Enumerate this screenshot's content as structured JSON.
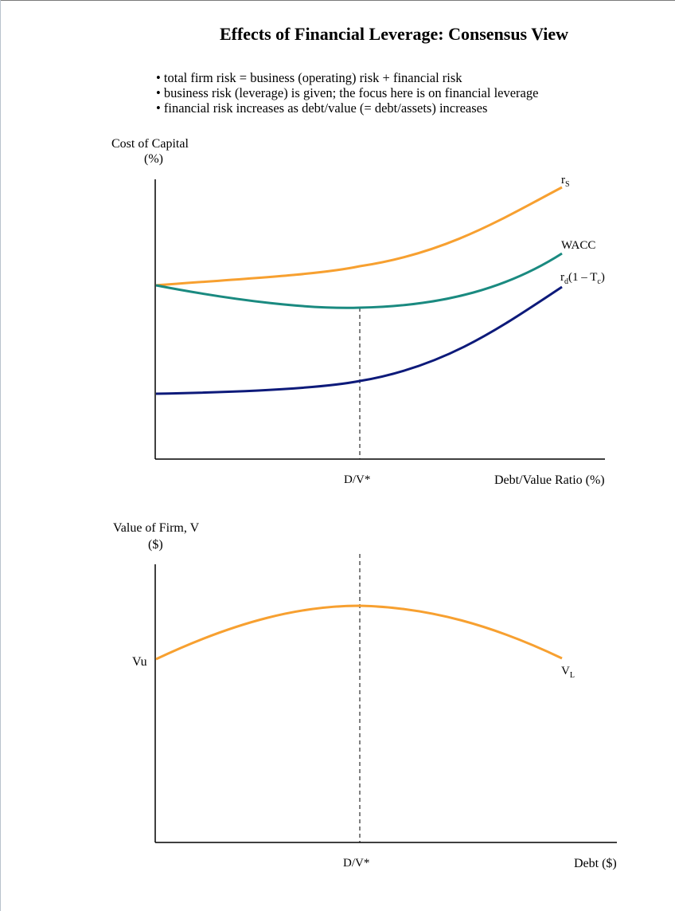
{
  "title": "Effects of Financial Leverage: Consensus View",
  "bullets": [
    "• total firm risk = business (operating) risk + financial risk",
    "• business risk (leverage) is given;  the focus here is on financial leverage",
    "• financial risk increases as debt/value (= debt/assets) increases"
  ],
  "top_chart": {
    "y_axis_label_line1": "Cost of Capital",
    "y_axis_label_line2": "(%)",
    "x_axis_label": "Debt/Value Ratio (%)",
    "optimum_label": "D/V*",
    "curves": {
      "rs": {
        "label": "r",
        "label_sub": "S",
        "color": "#f7a030"
      },
      "wacc": {
        "label": "WACC",
        "color": "#1a8a80"
      },
      "rd": {
        "label": "r",
        "label_sub": "d",
        "label_rest": "(1 – T",
        "label_sub2": "c",
        "label_end": ")",
        "color": "#0d1a7a"
      }
    }
  },
  "bottom_chart": {
    "y_axis_label_line1": "Value of Firm, V",
    "y_axis_label_line2": "($)",
    "x_axis_label": "Debt ($)",
    "optimum_label": "D/V*",
    "vu_label": "Vu",
    "vl_label": "V",
    "vl_sub": "L",
    "curve_color": "#f7a030"
  }
}
